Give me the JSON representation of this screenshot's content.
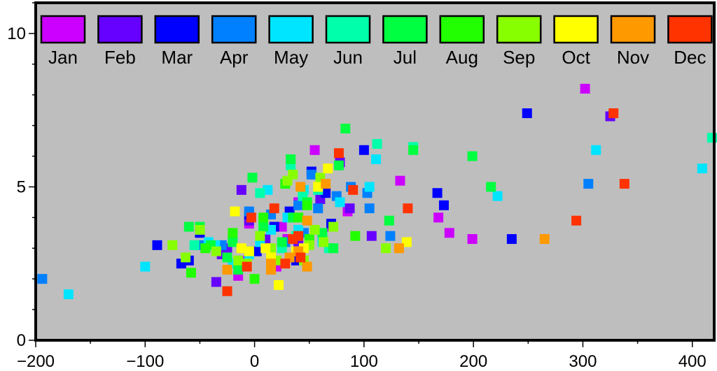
{
  "chart_data": {
    "type": "scatter",
    "title": "",
    "xlabel": "",
    "ylabel": "",
    "xlim": [
      -200,
      420
    ],
    "ylim": [
      0,
      11
    ],
    "x_ticks": [
      -200,
      -100,
      0,
      100,
      200,
      300,
      400
    ],
    "y_ticks": [
      0,
      5,
      10
    ],
    "background": "#bebebe",
    "legend_placement": "top",
    "series": [
      {
        "name": "Jan",
        "color": "#cc00ff",
        "points": [
          [
            -15,
            2.1
          ],
          [
            -10,
            2.6
          ],
          [
            -5,
            3.8
          ],
          [
            20,
            2.4
          ],
          [
            25,
            3.7
          ],
          [
            30,
            3.3
          ],
          [
            40,
            4.5
          ],
          [
            55,
            6.2
          ],
          [
            70,
            3.7
          ],
          [
            85,
            4.2
          ],
          [
            133,
            5.2
          ],
          [
            168,
            4.0
          ],
          [
            178,
            3.5
          ],
          [
            199,
            3.3
          ],
          [
            302,
            8.2
          ]
        ]
      },
      {
        "name": "Feb",
        "color": "#6600ff",
        "points": [
          [
            -35,
            1.9
          ],
          [
            -30,
            2.8
          ],
          [
            -25,
            3.0
          ],
          [
            -12,
            4.9
          ],
          [
            -5,
            3.9
          ],
          [
            10,
            3.3
          ],
          [
            15,
            2.8
          ],
          [
            40,
            3.2
          ],
          [
            60,
            4.6
          ],
          [
            78,
            5.8
          ],
          [
            87,
            4.3
          ],
          [
            107,
            3.4
          ],
          [
            325,
            7.3
          ]
        ]
      },
      {
        "name": "Mar",
        "color": "#0000ff",
        "points": [
          [
            -89,
            3.1
          ],
          [
            -67,
            2.5
          ],
          [
            -60,
            2.6
          ],
          [
            -50,
            3.5
          ],
          [
            -5,
            4.1
          ],
          [
            2,
            2.9
          ],
          [
            18,
            3.7
          ],
          [
            32,
            4.2
          ],
          [
            38,
            2.6
          ],
          [
            52,
            5.5
          ],
          [
            65,
            4.8
          ],
          [
            70,
            3.8
          ],
          [
            100,
            6.2
          ],
          [
            167,
            4.8
          ],
          [
            173,
            4.4
          ],
          [
            235,
            3.3
          ],
          [
            249,
            7.4
          ]
        ]
      },
      {
        "name": "Apr",
        "color": "#0080ff",
        "points": [
          [
            -194,
            2.0
          ],
          [
            -50,
            3.1
          ],
          [
            -30,
            3.1
          ],
          [
            -5,
            4.2
          ],
          [
            15,
            4.1
          ],
          [
            28,
            3.2
          ],
          [
            40,
            4.4
          ],
          [
            45,
            3.5
          ],
          [
            52,
            5.4
          ],
          [
            58,
            4.3
          ],
          [
            75,
            4.7
          ],
          [
            88,
            5.0
          ],
          [
            103,
            4.8
          ],
          [
            105,
            4.3
          ],
          [
            124,
            3.4
          ],
          [
            305,
            5.1
          ]
        ]
      },
      {
        "name": "May",
        "color": "#00e5ff",
        "points": [
          [
            -170,
            1.5
          ],
          [
            -100,
            2.4
          ],
          [
            -42,
            3.2
          ],
          [
            -36,
            3.1
          ],
          [
            -20,
            2.5
          ],
          [
            -5,
            2.8
          ],
          [
            5,
            3.2
          ],
          [
            12,
            4.9
          ],
          [
            15,
            3.6
          ],
          [
            30,
            4.0
          ],
          [
            40,
            3.6
          ],
          [
            45,
            4.9
          ],
          [
            62,
            3.2
          ],
          [
            78,
            4.5
          ],
          [
            105,
            5.0
          ],
          [
            111,
            5.9
          ],
          [
            222,
            4.7
          ],
          [
            312,
            6.2
          ],
          [
            409,
            5.6
          ]
        ]
      },
      {
        "name": "Jun",
        "color": "#00ffaa",
        "points": [
          [
            -55,
            3.1
          ],
          [
            -20,
            3.2
          ],
          [
            5,
            4.8
          ],
          [
            25,
            3.0
          ],
          [
            33,
            5.7
          ],
          [
            38,
            3.4
          ],
          [
            44,
            4.7
          ],
          [
            58,
            4.9
          ],
          [
            68,
            3.0
          ],
          [
            112,
            6.4
          ],
          [
            145,
            6.3
          ],
          [
            418,
            6.6
          ]
        ]
      },
      {
        "name": "Jul",
        "color": "#00ff40",
        "points": [
          [
            -60,
            3.7
          ],
          [
            -50,
            3.7
          ],
          [
            -40,
            3.1
          ],
          [
            -25,
            2.7
          ],
          [
            -20,
            3.2
          ],
          [
            -15,
            2.3
          ],
          [
            -2,
            5.3
          ],
          [
            8,
            3.7
          ],
          [
            25,
            3.2
          ],
          [
            33,
            5.9
          ],
          [
            35,
            4.0
          ],
          [
            48,
            4.5
          ],
          [
            62,
            3.5
          ],
          [
            72,
            3.0
          ],
          [
            77,
            5.7
          ],
          [
            83,
            6.9
          ],
          [
            123,
            3.9
          ],
          [
            145,
            6.2
          ],
          [
            199,
            6.0
          ],
          [
            216,
            5.0
          ]
        ]
      },
      {
        "name": "Aug",
        "color": "#22ff00",
        "points": [
          [
            -58,
            2.2
          ],
          [
            -45,
            3.0
          ],
          [
            -20,
            3.5
          ],
          [
            -5,
            2.9
          ],
          [
            0,
            2.0
          ],
          [
            8,
            4.0
          ],
          [
            28,
            5.1
          ],
          [
            40,
            4.0
          ],
          [
            48,
            4.4
          ],
          [
            50,
            3.3
          ],
          [
            92,
            3.4
          ]
        ]
      },
      {
        "name": "Sep",
        "color": "#88ff00",
        "points": [
          [
            -75,
            3.1
          ],
          [
            -63,
            2.7
          ],
          [
            -50,
            3.6
          ],
          [
            -35,
            2.9
          ],
          [
            -15,
            2.6
          ],
          [
            -7,
            2.5
          ],
          [
            5,
            3.4
          ],
          [
            15,
            3.0
          ],
          [
            20,
            2.6
          ],
          [
            30,
            5.2
          ],
          [
            35,
            5.4
          ],
          [
            45,
            2.6
          ],
          [
            50,
            3.1
          ],
          [
            55,
            3.6
          ],
          [
            60,
            5.3
          ],
          [
            63,
            3.2
          ],
          [
            72,
            3.7
          ],
          [
            120,
            3.0
          ]
        ]
      },
      {
        "name": "Oct",
        "color": "#ffff00",
        "points": [
          [
            -18,
            4.2
          ],
          [
            -12,
            3.0
          ],
          [
            -5,
            2.9
          ],
          [
            10,
            3.0
          ],
          [
            15,
            2.7
          ],
          [
            22,
            1.8
          ],
          [
            38,
            2.9
          ],
          [
            45,
            3.0
          ],
          [
            58,
            5.0
          ],
          [
            67,
            5.6
          ],
          [
            139,
            3.2
          ]
        ]
      },
      {
        "name": "Nov",
        "color": "#ff9900",
        "points": [
          [
            -25,
            2.3
          ],
          [
            15,
            2.5
          ],
          [
            15,
            2.3
          ],
          [
            32,
            2.7
          ],
          [
            40,
            2.9
          ],
          [
            42,
            5.0
          ],
          [
            48,
            2.4
          ],
          [
            48,
            3.9
          ],
          [
            65,
            5.1
          ],
          [
            132,
            3.0
          ],
          [
            265,
            3.3
          ]
        ]
      },
      {
        "name": "Dec",
        "color": "#ff3300",
        "points": [
          [
            -25,
            1.6
          ],
          [
            -7,
            2.4
          ],
          [
            -3,
            4.0
          ],
          [
            18,
            4.3
          ],
          [
            28,
            2.5
          ],
          [
            35,
            3.3
          ],
          [
            40,
            3.4
          ],
          [
            42,
            2.7
          ],
          [
            77,
            6.1
          ],
          [
            90,
            4.9
          ],
          [
            140,
            4.3
          ],
          [
            294,
            3.9
          ],
          [
            328,
            7.4
          ],
          [
            338,
            5.1
          ]
        ]
      }
    ]
  }
}
